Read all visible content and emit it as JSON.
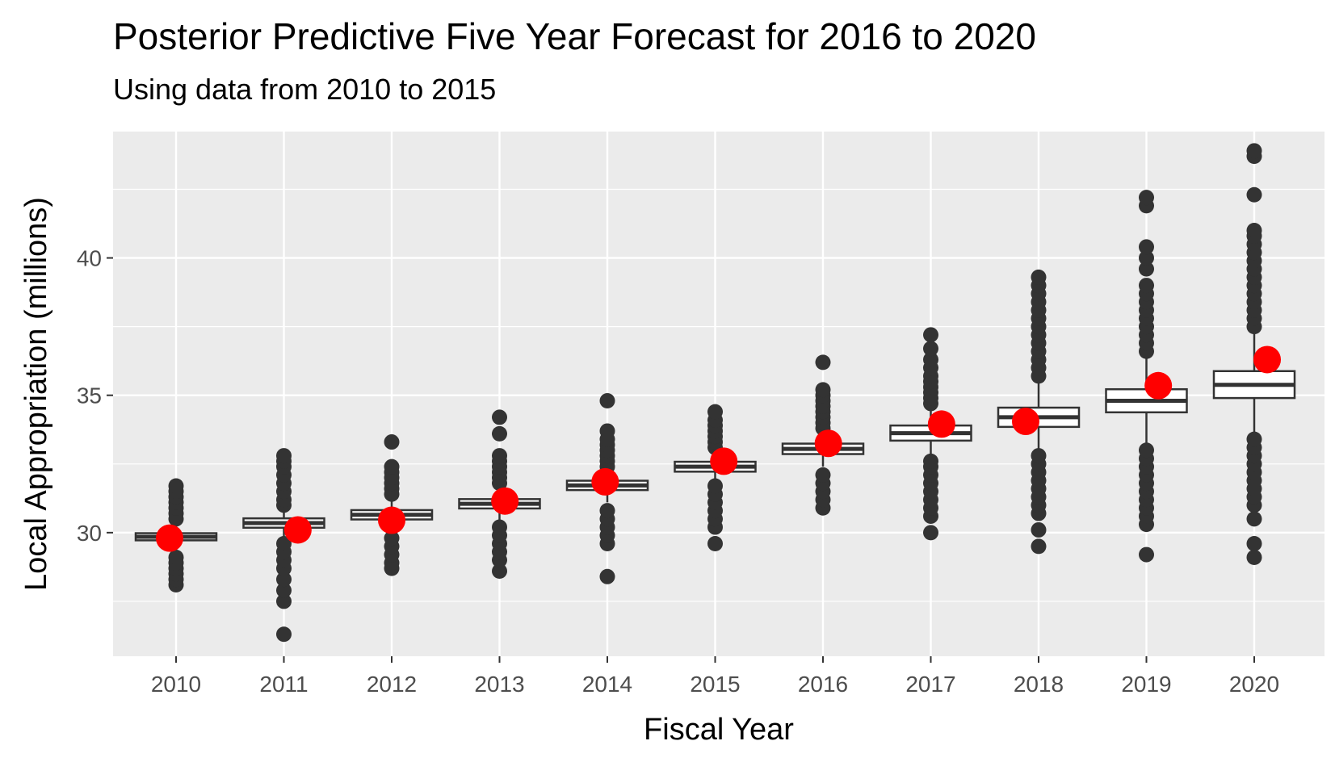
{
  "chart_data": {
    "type": "boxplot",
    "title": "Posterior Predictive Five Year Forecast for 2016 to 2020",
    "subtitle": "Using data from 2010 to 2015",
    "xlabel": "Fiscal Year",
    "ylabel": "Local Appropriation (millions)",
    "ylim": [
      25.5,
      44.6
    ],
    "yticks": [
      30,
      35,
      40
    ],
    "grid": true,
    "colors": {
      "panel": "#ebebeb",
      "grid": "#ffffff",
      "box_fill": "#ffffff",
      "box_line": "#333333",
      "outlier": "#333333",
      "point": "#ff0000"
    },
    "categories": [
      "2010",
      "2011",
      "2012",
      "2013",
      "2014",
      "2015",
      "2016",
      "2017",
      "2018",
      "2019",
      "2020"
    ],
    "boxes": [
      {
        "q1": 29.72,
        "median": 29.85,
        "q3": 29.98,
        "whisker_low": 29.3,
        "whisker_high": 30.4
      },
      {
        "q1": 30.18,
        "median": 30.35,
        "q3": 30.52,
        "whisker_low": 29.8,
        "whisker_high": 30.9
      },
      {
        "q1": 30.48,
        "median": 30.65,
        "q3": 30.82,
        "whisker_low": 30.0,
        "whisker_high": 31.3
      },
      {
        "q1": 30.88,
        "median": 31.05,
        "q3": 31.22,
        "whisker_low": 30.4,
        "whisker_high": 31.7
      },
      {
        "q1": 31.55,
        "median": 31.72,
        "q3": 31.89,
        "whisker_low": 31.1,
        "whisker_high": 32.3
      },
      {
        "q1": 32.22,
        "median": 32.4,
        "q3": 32.58,
        "whisker_low": 31.8,
        "whisker_high": 33.0
      },
      {
        "q1": 32.86,
        "median": 33.05,
        "q3": 33.24,
        "whisker_low": 32.4,
        "whisker_high": 33.7
      },
      {
        "q1": 33.35,
        "median": 33.62,
        "q3": 33.9,
        "whisker_low": 32.7,
        "whisker_high": 34.6
      },
      {
        "q1": 33.85,
        "median": 34.2,
        "q3": 34.55,
        "whisker_low": 32.9,
        "whisker_high": 35.6
      },
      {
        "q1": 34.38,
        "median": 34.8,
        "q3": 35.22,
        "whisker_low": 33.2,
        "whisker_high": 36.5
      },
      {
        "q1": 34.9,
        "median": 35.38,
        "q3": 35.88,
        "whisker_low": 33.5,
        "whisker_high": 37.3
      }
    ],
    "outliers": [
      [
        28.1,
        28.3,
        28.5,
        28.7,
        28.9,
        29.1,
        30.5,
        30.7,
        30.9,
        31.1,
        31.3,
        31.5,
        31.7
      ],
      [
        26.3,
        27.5,
        27.9,
        28.3,
        28.7,
        29.0,
        29.3,
        29.6,
        31.0,
        31.2,
        31.5,
        31.8,
        32.1,
        32.4,
        32.6,
        32.8
      ],
      [
        28.7,
        28.9,
        29.2,
        29.5,
        29.8,
        31.4,
        31.6,
        31.8,
        32.0,
        32.2,
        32.4,
        33.3
      ],
      [
        28.6,
        29.0,
        29.3,
        29.6,
        29.9,
        30.2,
        31.8,
        32.0,
        32.2,
        32.4,
        32.6,
        32.8,
        33.6,
        34.2
      ],
      [
        28.4,
        29.6,
        29.9,
        30.2,
        30.5,
        30.8,
        32.4,
        32.6,
        32.8,
        33.0,
        33.2,
        33.4,
        33.7,
        34.8
      ],
      [
        29.6,
        30.2,
        30.5,
        30.8,
        31.1,
        31.4,
        31.7,
        33.1,
        33.3,
        33.5,
        33.7,
        33.9,
        34.1,
        34.4
      ],
      [
        30.9,
        31.2,
        31.5,
        31.8,
        32.1,
        33.8,
        34.0,
        34.2,
        34.4,
        34.6,
        34.8,
        35.0,
        35.2,
        36.2
      ],
      [
        30.0,
        30.6,
        30.9,
        31.2,
        31.5,
        31.8,
        32.1,
        32.4,
        32.6,
        34.7,
        34.9,
        35.1,
        35.3,
        35.5,
        35.7,
        36.0,
        36.3,
        36.7,
        37.2
      ],
      [
        29.5,
        30.1,
        30.7,
        31.0,
        31.3,
        31.6,
        31.9,
        32.2,
        32.5,
        32.8,
        35.7,
        36.0,
        36.3,
        36.6,
        36.9,
        37.2,
        37.5,
        37.8,
        38.1,
        38.4,
        38.7,
        39.0,
        39.3
      ],
      [
        29.2,
        30.3,
        30.6,
        30.9,
        31.2,
        31.5,
        31.8,
        32.1,
        32.4,
        32.7,
        33.0,
        36.6,
        36.9,
        37.2,
        37.5,
        37.8,
        38.1,
        38.4,
        38.7,
        39.0,
        39.6,
        40.0,
        40.4,
        41.9,
        42.2
      ],
      [
        29.1,
        29.6,
        30.5,
        31.0,
        31.3,
        31.6,
        31.9,
        32.2,
        32.5,
        32.8,
        33.1,
        33.4,
        37.5,
        37.8,
        38.1,
        38.4,
        38.7,
        39.0,
        39.3,
        39.6,
        39.9,
        40.2,
        40.5,
        40.8,
        41.0,
        42.3,
        43.7,
        43.9
      ]
    ],
    "red_points": [
      {
        "x_offset": -0.06,
        "y": 29.8
      },
      {
        "x_offset": 0.13,
        "y": 30.1
      },
      {
        "x_offset": 0.0,
        "y": 30.45
      },
      {
        "x_offset": 0.05,
        "y": 31.15
      },
      {
        "x_offset": -0.02,
        "y": 31.85
      },
      {
        "x_offset": 0.08,
        "y": 32.6
      },
      {
        "x_offset": 0.05,
        "y": 33.25
      },
      {
        "x_offset": 0.1,
        "y": 33.95
      },
      {
        "x_offset": -0.12,
        "y": 34.05
      },
      {
        "x_offset": 0.11,
        "y": 35.35
      },
      {
        "x_offset": 0.12,
        "y": 36.3
      }
    ]
  }
}
